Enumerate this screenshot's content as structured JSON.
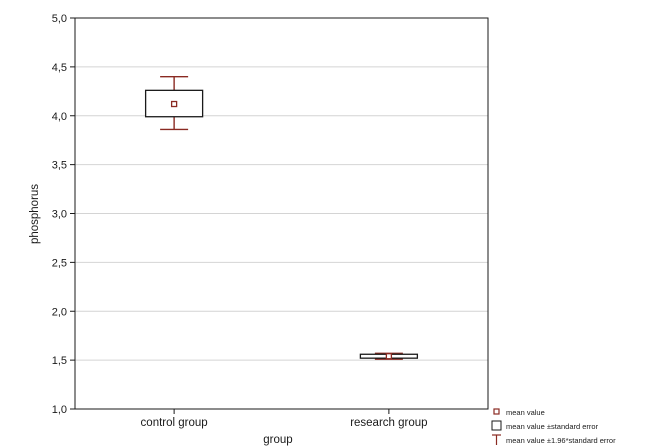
{
  "chart_data": {
    "type": "box",
    "xlabel": "group",
    "ylabel": "phosphorus",
    "ylim": [
      1.0,
      5.0
    ],
    "yticks": [
      "1,0",
      "1,5",
      "2,0",
      "2,5",
      "3,0",
      "3,5",
      "4,0",
      "4,5",
      "5,0"
    ],
    "grid": true,
    "categories": [
      "control group",
      "research group"
    ],
    "boxes": [
      {
        "category": "control group",
        "mean": 4.12,
        "se_low": 3.99,
        "se_high": 4.26,
        "ci_low": 3.86,
        "ci_high": 4.4
      },
      {
        "category": "research group",
        "mean": 1.54,
        "se_low": 1.52,
        "se_high": 1.56,
        "ci_low": 1.51,
        "ci_high": 1.57
      }
    ],
    "legend": {
      "position": "bottom-right",
      "items": [
        "mean value",
        "mean value ±standard error",
        "mean value ±1.96*standard error"
      ]
    },
    "colors": {
      "mean_marker": "#8a2a22",
      "whisker": "#8a2a22",
      "box": "#1a1a1a",
      "grid": "#d4d4d4"
    }
  }
}
